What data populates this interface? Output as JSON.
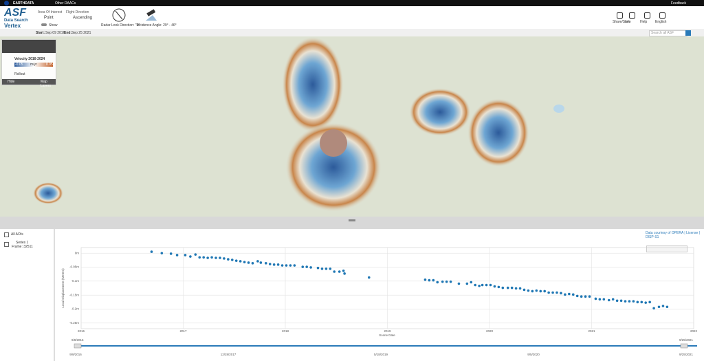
{
  "top_bar": {
    "brand": "EARTHDATA",
    "menu": "Other DAACs",
    "feedback": "Feedback"
  },
  "header": {
    "logo_title": "ASF",
    "logo_subtitle": "Data Search",
    "logo_name": "Vertex",
    "aoi_label": "Area Of Interest",
    "aoi_value": "Point",
    "show_label": "Show",
    "flight_label": "Flight Direction",
    "flight_value": "Ascending",
    "look_direction": "Radar Look Direction: \"R\"",
    "incidence": "Incidence Angle: 29° - 46°",
    "actions": [
      "Share/Save",
      "Info",
      "Help",
      "English"
    ]
  },
  "date_bar": {
    "start_label": "Start:",
    "start": "Sep 09 2016",
    "end_label": "End:",
    "end": "Sep 25 2021",
    "search_placeholder": "Search all ASF"
  },
  "map_panel": {
    "layer": "Velocity 2016-2024",
    "scale_min": "-0.05",
    "scale_unit": "m/yr",
    "scale_max": "0.05",
    "layer2": "Rollout",
    "footer_left": "Hide",
    "footer_right": "Map Layers"
  },
  "sidebar": {
    "all_aois": "All AOIs",
    "frame": "Frame: 32511"
  },
  "attribution": "Data courtesy of OPERA | License | DISP-S1",
  "chart_data": {
    "type": "scatter",
    "y_label": "Local Displacement (Meters)",
    "x_label": "Scene Date",
    "xlim": [
      2016,
      2022
    ],
    "xticks": [
      2016,
      2017,
      2018,
      2019,
      2020,
      2021,
      2022
    ],
    "ylim": [
      -0.27,
      0.02
    ],
    "yticks": [
      {
        "value": 0,
        "label": "0m"
      },
      {
        "value": -0.05,
        "label": "-0.05m"
      },
      {
        "value": -0.1,
        "label": "-0.1m"
      },
      {
        "value": -0.15,
        "label": "-0.15m"
      },
      {
        "value": -0.2,
        "label": "-0.2m"
      },
      {
        "value": -0.25,
        "label": "-0.25m"
      }
    ],
    "grid": true,
    "x": [
      2016.69,
      2016.79,
      2016.88,
      2016.94,
      2017.02,
      2017.07,
      2017.12,
      2017.16,
      2017.2,
      2017.24,
      2017.28,
      2017.32,
      2017.36,
      2017.4,
      2017.44,
      2017.48,
      2017.52,
      2017.56,
      2017.6,
      2017.64,
      2017.68,
      2017.73,
      2017.76,
      2017.81,
      2017.85,
      2017.89,
      2017.93,
      2017.97,
      2018.01,
      2018.05,
      2018.09,
      2018.17,
      2018.21,
      2018.25,
      2018.32,
      2018.36,
      2018.4,
      2018.44,
      2018.48,
      2018.53,
      2018.57,
      2018.58,
      2018.82,
      2019.37,
      2019.41,
      2019.45,
      2019.49,
      2019.54,
      2019.58,
      2019.62,
      2019.7,
      2019.78,
      2019.82,
      2019.86,
      2019.9,
      2019.93,
      2019.97,
      2020.01,
      2020.05,
      2020.09,
      2020.13,
      2020.18,
      2020.22,
      2020.26,
      2020.3,
      2020.34,
      2020.38,
      2020.42,
      2020.46,
      2020.5,
      2020.54,
      2020.58,
      2020.62,
      2020.66,
      2020.7,
      2020.74,
      2020.78,
      2020.82,
      2020.86,
      2020.9,
      2020.94,
      2020.98,
      2021.04,
      2021.08,
      2021.12,
      2021.17,
      2021.21,
      2021.25,
      2021.29,
      2021.33,
      2021.37,
      2021.41,
      2021.45,
      2021.49,
      2021.53,
      2021.57,
      2021.61,
      2021.66,
      2021.7,
      2021.74
    ],
    "series": [
      {
        "name": "Series 1",
        "color": "#1f77b4",
        "values": [
          0.005,
          0,
          -0.002,
          -0.007,
          -0.007,
          -0.012,
          -0.005,
          -0.015,
          -0.015,
          -0.017,
          -0.015,
          -0.017,
          -0.017,
          -0.019,
          -0.022,
          -0.024,
          -0.027,
          -0.029,
          -0.032,
          -0.034,
          -0.036,
          -0.029,
          -0.034,
          -0.036,
          -0.039,
          -0.041,
          -0.041,
          -0.044,
          -0.044,
          -0.044,
          -0.044,
          -0.049,
          -0.049,
          -0.051,
          -0.053,
          -0.056,
          -0.056,
          -0.056,
          -0.066,
          -0.066,
          -0.063,
          -0.073,
          -0.087,
          -0.095,
          -0.097,
          -0.097,
          -0.104,
          -0.102,
          -0.102,
          -0.102,
          -0.109,
          -0.109,
          -0.104,
          -0.114,
          -0.117,
          -0.114,
          -0.114,
          -0.114,
          -0.119,
          -0.121,
          -0.124,
          -0.124,
          -0.124,
          -0.126,
          -0.126,
          -0.131,
          -0.134,
          -0.136,
          -0.134,
          -0.136,
          -0.136,
          -0.141,
          -0.141,
          -0.141,
          -0.143,
          -0.148,
          -0.146,
          -0.148,
          -0.153,
          -0.155,
          -0.155,
          -0.155,
          -0.163,
          -0.165,
          -0.165,
          -0.168,
          -0.165,
          -0.17,
          -0.17,
          -0.172,
          -0.172,
          -0.172,
          -0.175,
          -0.175,
          -0.177,
          -0.175,
          -0.197,
          -0.192,
          -0.189,
          -0.192
        ]
      }
    ]
  },
  "timeline": {
    "start": "9/9/2016",
    "end": "9/25/2021",
    "ticks": [
      "9/9/2016",
      "12/28/2017",
      "5/18/2019",
      "9/5/2020",
      "9/25/2021"
    ]
  }
}
